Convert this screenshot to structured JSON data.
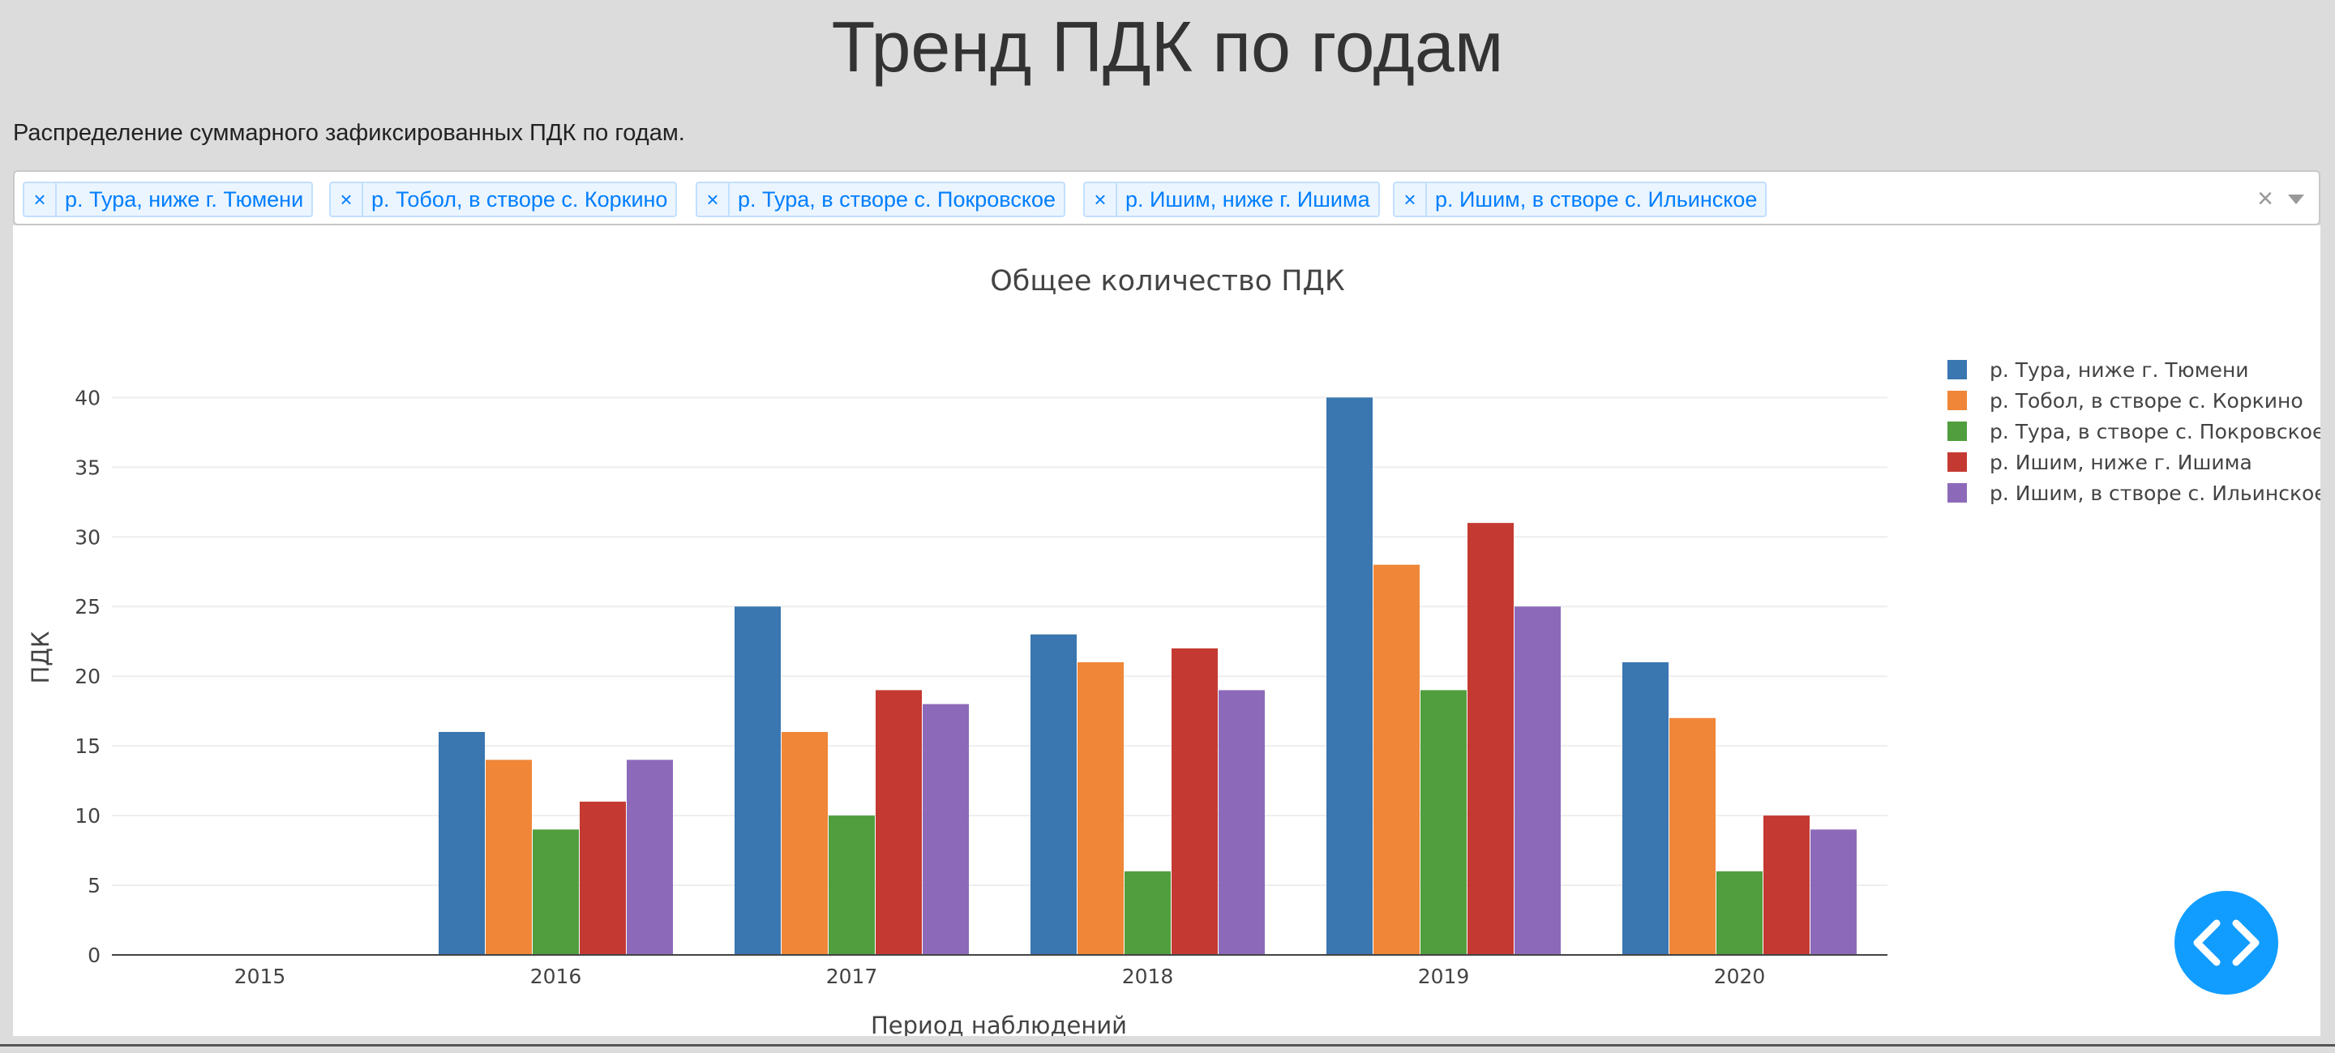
{
  "page": {
    "title": "Тренд ПДК по годам",
    "subtitle": "Распределение суммарного зафиксированных ПДК по годам."
  },
  "filter": {
    "chips": [
      {
        "label": "р. Тура, ниже г. Тюмени",
        "remove": "×"
      },
      {
        "label": "р. Тобол, в створе с. Коркино",
        "remove": "×"
      },
      {
        "label": "р. Тура, в створе с. Покровское",
        "remove": "×"
      },
      {
        "label": "р. Ишим, ниже г. Ишима",
        "remove": "×"
      },
      {
        "label": "р. Ишим, в створе с. Ильинское",
        "remove": "×"
      }
    ],
    "clear_icon": "×"
  },
  "chart_data": {
    "type": "bar",
    "title": "Общее количество ПДК",
    "xlabel": "Период наблюдений",
    "ylabel": "ПДК",
    "categories": [
      "2015",
      "2016",
      "2017",
      "2018",
      "2019",
      "2020"
    ],
    "ylim": [
      0,
      42
    ],
    "yticks": [
      0,
      5,
      10,
      15,
      20,
      25,
      30,
      35,
      40
    ],
    "grid": true,
    "legend_position": "top-right",
    "series": [
      {
        "name": "р. Тура, ниже г. Тюмени",
        "color": "#3a76b0",
        "values": [
          0,
          16,
          25,
          23,
          40,
          21
        ]
      },
      {
        "name": "р. Тобол, в створе с. Коркино",
        "color": "#ef8638",
        "values": [
          0,
          14,
          16,
          21,
          28,
          17
        ]
      },
      {
        "name": "р. Тура, в створе с. Покровское",
        "color": "#509e3d",
        "values": [
          0,
          9,
          10,
          6,
          19,
          6
        ]
      },
      {
        "name": "р. Ишим, ниже г. Ишима",
        "color": "#c43a32",
        "values": [
          0,
          11,
          19,
          22,
          31,
          10
        ]
      },
      {
        "name": "р. Ишим, в створе с. Ильинское",
        "color": "#8d6ab9",
        "values": [
          0,
          14,
          18,
          19,
          25,
          9
        ]
      }
    ]
  },
  "fab": {
    "icon": "code-icon",
    "color": "#119dff"
  }
}
